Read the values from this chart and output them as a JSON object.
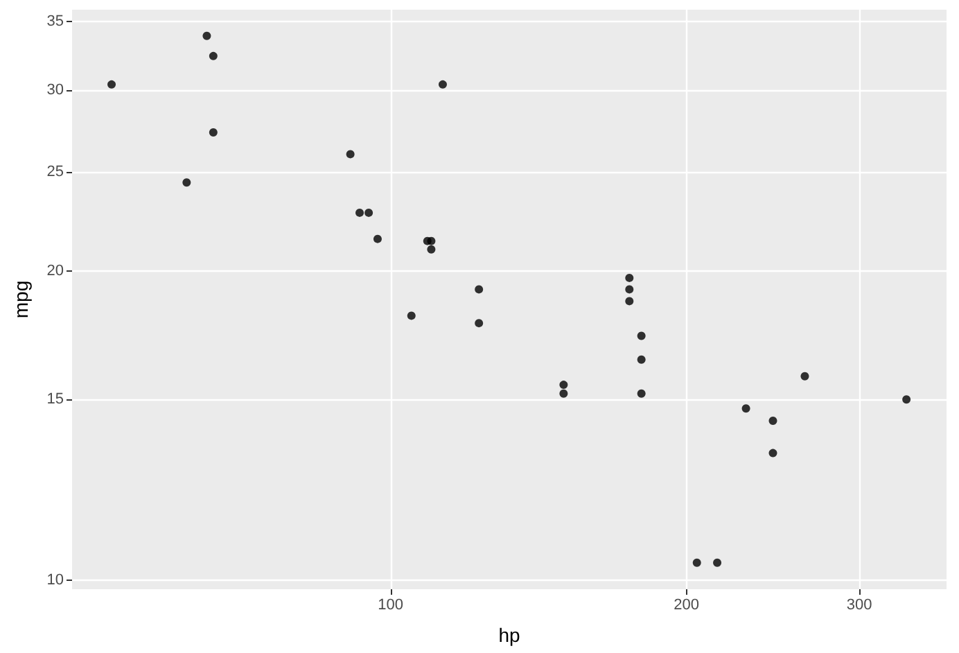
{
  "chart_data": {
    "type": "scatter",
    "xlabel": "hp",
    "ylabel": "mpg",
    "log": "xy",
    "grid": true,
    "marker": "circle",
    "color": "#000000",
    "x": [
      110,
      93,
      110,
      175,
      105,
      245,
      62,
      95,
      123,
      123,
      180,
      180,
      180,
      205,
      215,
      230,
      66,
      52,
      65,
      97,
      150,
      150,
      245,
      175,
      66,
      91,
      113,
      264,
      175,
      335,
      109
    ],
    "values": [
      21.0,
      22.8,
      21.4,
      18.7,
      18.1,
      14.3,
      24.4,
      22.8,
      19.2,
      17.8,
      16.4,
      17.3,
      15.2,
      10.4,
      10.4,
      14.7,
      32.4,
      30.4,
      33.9,
      21.5,
      15.5,
      15.2,
      13.3,
      19.2,
      27.3,
      26.0,
      30.4,
      15.8,
      19.7,
      15.0,
      21.4
    ],
    "xlim": [
      47.4,
      368
    ],
    "ylim": [
      9.8,
      35.95
    ],
    "xticks": [
      100,
      200,
      300
    ],
    "yticks": [
      10,
      15,
      20,
      25,
      30,
      35
    ]
  }
}
